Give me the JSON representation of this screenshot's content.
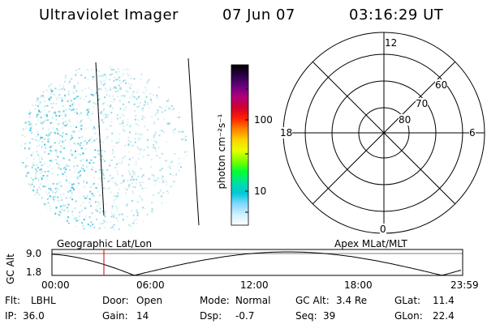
{
  "header": {
    "title": "Ultraviolet Imager",
    "date": "07 Jun 07",
    "time": "03:16:29 UT"
  },
  "colorbar": {
    "label": "photon cm⁻²s⁻¹",
    "ticks": [
      "100",
      "10"
    ],
    "colors": [
      "#000000",
      "#2a0044",
      "#6a0080",
      "#b0007a",
      "#d00030",
      "#ff2000",
      "#ff8000",
      "#ffd000",
      "#e8ff00",
      "#80ff00",
      "#00ff30",
      "#00e0a0",
      "#00c8d8",
      "#80d8ff",
      "#d0f0ff",
      "#ffffff"
    ]
  },
  "polar": {
    "clock_labels": [
      "12",
      "6",
      "0",
      "18"
    ],
    "lat_labels": [
      "60",
      "70",
      "80"
    ]
  },
  "timeline": {
    "left_label": "Geographic Lat/Lon",
    "right_label": "Apex MLat/MLT",
    "axis_title": "GC Alt",
    "y_ticks": [
      "9.0",
      "1.8"
    ],
    "x_ticks": [
      "00:00",
      "06:00",
      "12:00",
      "18:00",
      "23:59"
    ],
    "marker_color": "#cc0000"
  },
  "status": {
    "row1": [
      {
        "key": "Flt:",
        "val": "LBHL"
      },
      {
        "key": "Door:",
        "val": "Open"
      },
      {
        "key": "Mode:",
        "val": "Normal"
      },
      {
        "key": "GC Alt:",
        "val": "3.4 Re"
      },
      {
        "key": "GLat:",
        "val": "11.4"
      }
    ],
    "row2": [
      {
        "key": "IP:",
        "val": "36.0"
      },
      {
        "key": "Gain:",
        "val": "14"
      },
      {
        "key": "Dsp:",
        "val": "-0.7"
      },
      {
        "key": "Seq:",
        "val": "39"
      },
      {
        "key": "GLon:",
        "val": "22.4"
      }
    ]
  }
}
